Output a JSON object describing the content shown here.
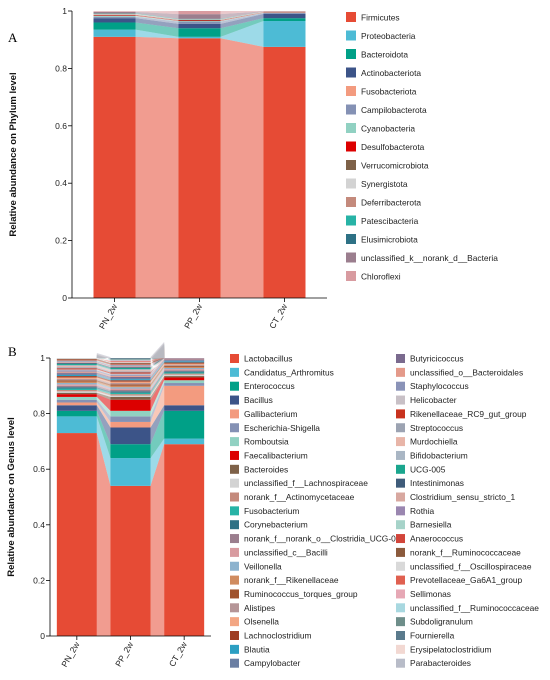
{
  "chart_data": [
    {
      "panel": "A",
      "type": "area",
      "stacked": true,
      "ylabel": "Relative abundance on Phylum level",
      "xlabel": "",
      "ylim": [
        0,
        1
      ],
      "yticks": [
        "0",
        "0.2",
        "0.4",
        "0.6",
        "0.8",
        "1"
      ],
      "categories": [
        "PN_2w",
        "PP_2w",
        "CT_2w"
      ],
      "legend_position": "right",
      "series": [
        {
          "name": "Firmicutes",
          "color": "#E64B35",
          "values": [
            0.91,
            0.905,
            0.875
          ]
        },
        {
          "name": "Proteobacteria",
          "color": "#4DBBD5",
          "values": [
            0.025,
            0.005,
            0.09
          ]
        },
        {
          "name": "Bacteroidota",
          "color": "#00A087",
          "values": [
            0.025,
            0.03,
            0.01
          ]
        },
        {
          "name": "Actinobacteriota",
          "color": "#3C5488",
          "values": [
            0.015,
            0.015,
            0.015
          ]
        },
        {
          "name": "Fusobacteriota",
          "color": "#F39B7F",
          "values": [
            0.0,
            0.0,
            0.0
          ]
        },
        {
          "name": "Campilobacterota",
          "color": "#8491B4",
          "values": [
            0.005,
            0.008,
            0.003
          ]
        },
        {
          "name": "Cyanobacteria",
          "color": "#91D1C2",
          "values": [
            0.003,
            0.002,
            0.001
          ]
        },
        {
          "name": "Desulfobacterota",
          "color": "#DC0000",
          "values": [
            0.002,
            0.002,
            0.001
          ]
        },
        {
          "name": "Verrucomicrobiota",
          "color": "#7E6148",
          "values": [
            0.002,
            0.002,
            0.001
          ]
        },
        {
          "name": "Synergistota",
          "color": "#D3D3D3",
          "values": [
            0.002,
            0.001,
            0.001
          ]
        },
        {
          "name": "Deferribacterota",
          "color": "#C48A7C",
          "values": [
            0.002,
            0.001,
            0.001
          ]
        },
        {
          "name": "Patescibacteria",
          "color": "#27B3A6",
          "values": [
            0.001,
            0.001,
            0.0
          ]
        },
        {
          "name": "Elusimicrobiota",
          "color": "#2E7185",
          "values": [
            0.001,
            0.001,
            0.0
          ]
        },
        {
          "name": "unclassified_k__norank_d__Bacteria",
          "color": "#9B7E8E",
          "values": [
            0.004,
            0.016,
            0.001
          ]
        },
        {
          "name": "Chloroflexi",
          "color": "#D89BA0",
          "values": [
            0.002,
            0.011,
            0.001
          ]
        }
      ]
    },
    {
      "panel": "B",
      "type": "area",
      "stacked": true,
      "ylabel": "Relative abundance on Genus level",
      "xlabel": "",
      "ylim": [
        0,
        1
      ],
      "yticks": [
        "0",
        "0.2",
        "0.4",
        "0.6",
        "0.8",
        "1"
      ],
      "categories": [
        "PN_2w",
        "PP_2w",
        "CT_2w"
      ],
      "legend_position": "right",
      "series": [
        {
          "name": "Lactobacillus",
          "color": "#E64B35",
          "values": [
            0.73,
            0.54,
            0.69
          ]
        },
        {
          "name": "Candidatus_Arthromitus",
          "color": "#4DBBD5",
          "values": [
            0.06,
            0.1,
            0.02
          ]
        },
        {
          "name": "Enterococcus",
          "color": "#00A087",
          "values": [
            0.02,
            0.05,
            0.1
          ]
        },
        {
          "name": "Bacillus",
          "color": "#3C5488",
          "values": [
            0.02,
            0.06,
            0.02
          ]
        },
        {
          "name": "Gallibacterium",
          "color": "#F39B7F",
          "values": [
            0.01,
            0.02,
            0.07
          ]
        },
        {
          "name": "Escherichia-Shigella",
          "color": "#8491B4",
          "values": [
            0.01,
            0.02,
            0.01
          ]
        },
        {
          "name": "Romboutsia",
          "color": "#91D1C2",
          "values": [
            0.01,
            0.02,
            0.01
          ]
        },
        {
          "name": "Faecalibacterium",
          "color": "#DC0000",
          "values": [
            0.01,
            0.04,
            0.01
          ]
        },
        {
          "name": "Bacteroides",
          "color": "#7E6148",
          "values": [
            0.005,
            0.01,
            0.005
          ]
        },
        {
          "name": "unclassified_f__Lachnospiraceae",
          "color": "#D3D3D3",
          "values": [
            0.005,
            0.005,
            0.005
          ]
        },
        {
          "name": "norank_f__Actinomycetaceae",
          "color": "#C48A7C",
          "values": [
            0.005,
            0.005,
            0.004
          ]
        },
        {
          "name": "Fusobacterium",
          "color": "#27B3A6",
          "values": [
            0.005,
            0.005,
            0.004
          ]
        },
        {
          "name": "Corynebacterium",
          "color": "#2E7185",
          "values": [
            0.005,
            0.005,
            0.004
          ]
        },
        {
          "name": "norank_f__norank_o__Clostridia_UCG-014",
          "color": "#9B7E8E",
          "values": [
            0.005,
            0.005,
            0.004
          ]
        },
        {
          "name": "unclassified_c__Bacilli",
          "color": "#D89BA0",
          "values": [
            0.005,
            0.005,
            0.004
          ]
        },
        {
          "name": "Veillonella",
          "color": "#8DB3CE",
          "values": [
            0.005,
            0.005,
            0.004
          ]
        },
        {
          "name": "norank_f__Rikenellaceae",
          "color": "#D08C60",
          "values": [
            0.005,
            0.005,
            0.004
          ]
        },
        {
          "name": "Ruminococcus_torques_group",
          "color": "#A0522D",
          "values": [
            0.005,
            0.005,
            0.004
          ]
        },
        {
          "name": "Alistipes",
          "color": "#B59597",
          "values": [
            0.005,
            0.005,
            0.004
          ]
        },
        {
          "name": "Olsenella",
          "color": "#F3A683",
          "values": [
            0.005,
            0.005,
            0.004
          ]
        },
        {
          "name": "Lachnoclostridium",
          "color": "#9E3D22",
          "values": [
            0.005,
            0.005,
            0.004
          ]
        },
        {
          "name": "Blautia",
          "color": "#2C9FC2",
          "values": [
            0.004,
            0.004,
            0.004
          ]
        },
        {
          "name": "Campylobacter",
          "color": "#6B7FA3",
          "values": [
            0.004,
            0.004,
            0.004
          ]
        },
        {
          "name": "Butyricicoccus",
          "color": "#7A6A8E",
          "values": [
            0.004,
            0.004,
            0.003
          ]
        },
        {
          "name": "unclassified_o__Bacteroidales",
          "color": "#E49A8A",
          "values": [
            0.004,
            0.004,
            0.003
          ]
        },
        {
          "name": "Staphylococcus",
          "color": "#8A93B8",
          "values": [
            0.004,
            0.004,
            0.003
          ]
        },
        {
          "name": "Helicobacter",
          "color": "#C8C0C6",
          "values": [
            0.004,
            0.004,
            0.003
          ]
        },
        {
          "name": "Rikenellaceae_RC9_gut_group",
          "color": "#C8321E",
          "values": [
            0.004,
            0.004,
            0.003
          ]
        },
        {
          "name": "Streptococcus",
          "color": "#9CA3B2",
          "values": [
            0.004,
            0.004,
            0.003
          ]
        },
        {
          "name": "Murdochiella",
          "color": "#E8B5A8",
          "values": [
            0.004,
            0.004,
            0.003
          ]
        },
        {
          "name": "Bifidobacterium",
          "color": "#A9B6C4",
          "values": [
            0.004,
            0.004,
            0.003
          ]
        },
        {
          "name": "UCG-005",
          "color": "#1AA68E",
          "values": [
            0.004,
            0.004,
            0.003
          ]
        },
        {
          "name": "Intestinimonas",
          "color": "#3F5C7A",
          "values": [
            0.003,
            0.003,
            0.003
          ]
        },
        {
          "name": "Clostridium_sensu_stricto_1",
          "color": "#D8A8A0",
          "values": [
            0.003,
            0.003,
            0.003
          ]
        },
        {
          "name": "Rothia",
          "color": "#9A86B0",
          "values": [
            0.003,
            0.003,
            0.003
          ]
        },
        {
          "name": "Barnesiella",
          "color": "#A6D3C9",
          "values": [
            0.003,
            0.003,
            0.003
          ]
        },
        {
          "name": "Anaerococcus",
          "color": "#D2453A",
          "values": [
            0.003,
            0.003,
            0.003
          ]
        },
        {
          "name": "norank_f__Ruminococcaceae",
          "color": "#8B5A3C",
          "values": [
            0.003,
            0.003,
            0.003
          ]
        },
        {
          "name": "unclassified_f__Oscillospiraceae",
          "color": "#D9D9D9",
          "values": [
            0.003,
            0.003,
            0.003
          ]
        },
        {
          "name": "Prevotellaceae_Ga6A1_group",
          "color": "#E06050",
          "values": [
            0.003,
            0.003,
            0.003
          ]
        },
        {
          "name": "Sellimonas",
          "color": "#E6A8B5",
          "values": [
            0.003,
            0.003,
            0.003
          ]
        },
        {
          "name": "unclassified_f__Ruminococcaceae",
          "color": "#A8D8E0",
          "values": [
            0.003,
            0.003,
            0.003
          ]
        },
        {
          "name": "Subdoligranulum",
          "color": "#6E8E8A",
          "values": [
            0.003,
            0.003,
            0.003
          ]
        },
        {
          "name": "Fournierella",
          "color": "#5A7A8C",
          "values": [
            0.003,
            0.003,
            0.003
          ]
        },
        {
          "name": "Erysipelatoclostridium",
          "color": "#F2D8D2",
          "values": [
            0.003,
            0.003,
            0.003
          ]
        },
        {
          "name": "Parabacteroides",
          "color": "#B8BCC8",
          "values": [
            0.003,
            0.003,
            0.003
          ]
        }
      ]
    }
  ],
  "panel_labels": [
    "A",
    "B"
  ]
}
